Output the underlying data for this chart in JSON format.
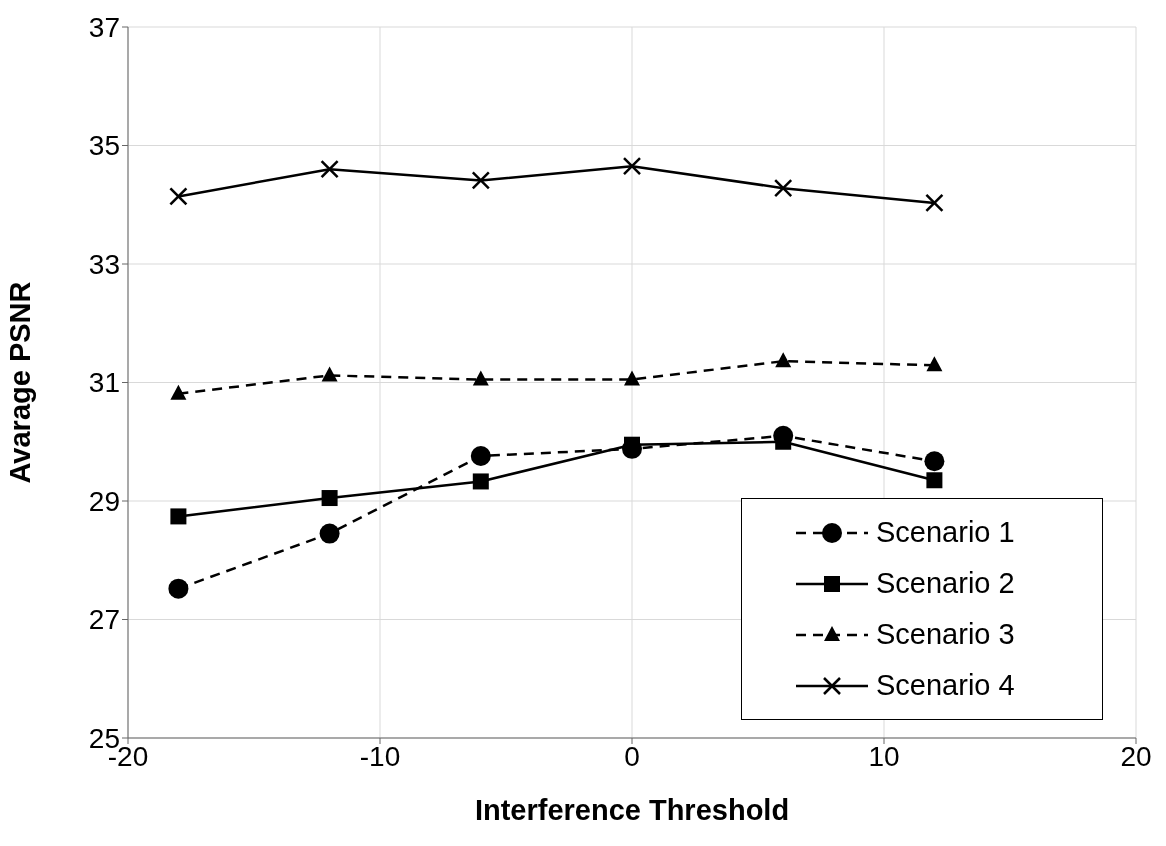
{
  "chart_data": {
    "type": "line",
    "xlabel": "Interference Threshold",
    "ylabel": "Avarage PSNR",
    "x": [
      -18,
      -12,
      -6,
      0,
      6,
      12
    ],
    "series": [
      {
        "name": "Scenario 1",
        "color": "#000000",
        "marker": "circle",
        "line_style": "dashed",
        "values": [
          27.52,
          28.45,
          29.76,
          29.88,
          30.1,
          29.67
        ]
      },
      {
        "name": "Scenario 2",
        "color": "#000000",
        "marker": "square",
        "line_style": "solid",
        "values": [
          28.74,
          29.05,
          29.33,
          29.95,
          30.0,
          29.35
        ]
      },
      {
        "name": "Scenario 3",
        "color": "#000000",
        "marker": "triangle",
        "line_style": "dashed",
        "values": [
          30.81,
          31.12,
          31.05,
          31.05,
          31.36,
          31.29
        ]
      },
      {
        "name": "Scenario 4",
        "color": "#000000",
        "marker": "cross",
        "line_style": "solid",
        "values": [
          34.14,
          34.6,
          34.41,
          34.65,
          34.28,
          34.03
        ]
      }
    ],
    "xlim": [
      -20,
      20
    ],
    "xticks": [
      -20,
      -10,
      0,
      10,
      20
    ],
    "ylim": [
      25,
      37
    ],
    "yticks": [
      25,
      27,
      29,
      31,
      33,
      35,
      37
    ],
    "grid": true,
    "legend": "bottom right"
  }
}
